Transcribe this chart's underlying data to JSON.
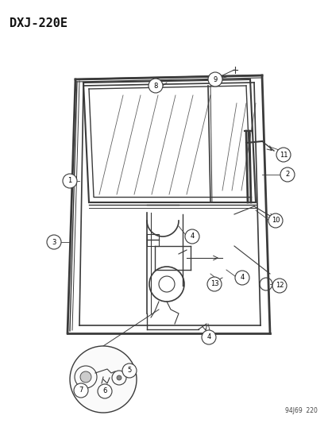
{
  "title": "DXJ-220E",
  "footer": "94J69  220",
  "bg_color": "#ffffff",
  "title_fontsize": 11,
  "line_color": "#3a3a3a",
  "callout_text_color": "#000000",
  "figsize": [
    4.14,
    5.33
  ],
  "dpi": 100
}
